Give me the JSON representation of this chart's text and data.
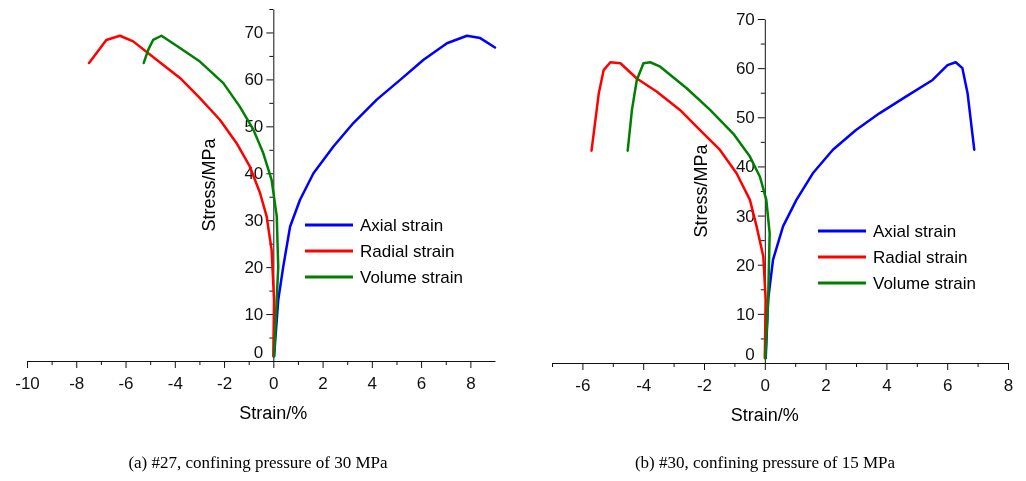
{
  "chart_data": [
    {
      "type": "line",
      "xlabel": "Strain/%",
      "ylabel": "Stress/MPa",
      "annotations": [
        "(a) #27, confining pressure of 30 MPa"
      ],
      "xlim": [
        -10,
        9
      ],
      "ylim": [
        0,
        75
      ],
      "xticks": [
        -10,
        {
          "value": -9,
          "label": null
        },
        -8,
        {
          "value": -7,
          "label": null
        },
        -6,
        {
          "value": -5,
          "label": null
        },
        -4,
        {
          "value": -3,
          "label": null
        },
        -2,
        {
          "value": -1,
          "label": null
        },
        0,
        {
          "value": 1,
          "label": null
        },
        2,
        {
          "value": 3,
          "label": null
        },
        4,
        {
          "value": 5,
          "label": null
        },
        6,
        {
          "value": 7,
          "label": null
        },
        8
      ],
      "yticks": [
        0,
        {
          "value": 5,
          "label": null
        },
        10,
        {
          "value": 15,
          "label": null
        },
        20,
        {
          "value": 25,
          "label": null
        },
        30,
        {
          "value": 35,
          "label": null
        },
        40,
        {
          "value": 45,
          "label": null
        },
        50,
        {
          "value": 55,
          "label": null
        },
        60,
        {
          "value": 65,
          "label": null
        },
        70,
        {
          "value": 75,
          "label": null
        }
      ],
      "grid": false,
      "legend": "right",
      "marker": "none",
      "line_style": "solid",
      "series": [
        {
          "name": "Axial strain",
          "color": "#0000ff",
          "x": [
            0.03,
            0.2,
            0.4,
            0.68,
            1.08,
            1.63,
            2.44,
            3.25,
            4.2,
            5.15,
            6.1,
            7.05,
            7.86,
            8.4,
            9.0
          ],
          "values": [
            1,
            13,
            20,
            28.6,
            34.3,
            40,
            45.7,
            50.7,
            55.7,
            59.9,
            64.2,
            67.7,
            69.3,
            68.8,
            66.8
          ]
        },
        {
          "name": "Radial strain",
          "color": "#ff0000",
          "x": [
            0,
            0.03,
            -0.07,
            -0.27,
            -0.54,
            -0.95,
            -1.49,
            -2.17,
            -2.98,
            -3.79,
            -4.74,
            -5.69,
            -6.23,
            -6.78,
            -7.48
          ],
          "values": [
            1,
            13,
            23.7,
            30.8,
            35.8,
            41.4,
            46.4,
            51.4,
            56,
            60.3,
            64.2,
            68.1,
            69.3,
            68.4,
            63.5
          ]
        },
        {
          "name": "Volume strain",
          "color": "#007f00",
          "x": [
            0.03,
            0.2,
            0.14,
            -0.07,
            -0.41,
            -0.81,
            -1.36,
            -2.03,
            -2.98,
            -3.79,
            -4.54,
            -4.88,
            -5.08,
            -5.26
          ],
          "values": [
            1,
            20,
            30.8,
            38.6,
            44.3,
            49.3,
            54.2,
            59.2,
            63.8,
            66.7,
            69.3,
            68.4,
            66.3,
            63.5
          ]
        }
      ]
    },
    {
      "type": "line",
      "xlabel": "Strain/%",
      "ylabel": "Stress/MPa",
      "annotations": [
        "(b) #30, confining pressure of 15 MPa"
      ],
      "xlim": [
        -7,
        8
      ],
      "ylim": [
        0,
        70
      ],
      "xticks": [
        {
          "value": -7,
          "label": null
        },
        -6,
        {
          "value": -5,
          "label": null
        },
        -4,
        {
          "value": -3,
          "label": null
        },
        -2,
        {
          "value": -1,
          "label": null
        },
        0,
        {
          "value": 1,
          "label": null
        },
        2,
        {
          "value": 3,
          "label": null
        },
        4,
        {
          "value": 5,
          "label": null
        },
        6,
        {
          "value": 7,
          "label": null
        },
        8
      ],
      "yticks": [
        0,
        {
          "value": 5,
          "label": null
        },
        10,
        {
          "value": 15,
          "label": null
        },
        20,
        {
          "value": 25,
          "label": null
        },
        30,
        {
          "value": 35,
          "label": null
        },
        40,
        {
          "value": 45,
          "label": null
        },
        50,
        {
          "value": 55,
          "label": null
        },
        60,
        {
          "value": 65,
          "label": null
        },
        70
      ],
      "grid": false,
      "legend": "right",
      "marker": "none",
      "line_style": "solid",
      "series": [
        {
          "name": "Axial strain",
          "color": "#0000ff",
          "x": [
            0.03,
            0.11,
            0.27,
            0.6,
            1.04,
            1.58,
            2.24,
            3.0,
            3.77,
            4.64,
            5.52,
            6.01,
            6.28,
            6.5,
            6.67,
            6.89
          ],
          "values": [
            1,
            12.9,
            21,
            27.8,
            33.2,
            38.6,
            43.4,
            47.4,
            50.8,
            54.2,
            57.6,
            60.6,
            61.2,
            60,
            54.9,
            43.4
          ]
        },
        {
          "name": "Radial strain",
          "color": "#ff0000",
          "x": [
            0,
            0.03,
            -0.05,
            -0.27,
            -0.49,
            -0.93,
            -1.48,
            -2.13,
            -2.79,
            -3.55,
            -4.21,
            -4.75,
            -5.08,
            -5.3,
            -5.46,
            -5.7
          ],
          "values": [
            1,
            12.9,
            21.7,
            27.8,
            33.2,
            38.6,
            43.4,
            47.4,
            51.5,
            55.2,
            57.9,
            61,
            61.2,
            59.6,
            54.9,
            43.2
          ]
        },
        {
          "name": "Volume strain",
          "color": "#007f00",
          "x": [
            0.02,
            0.11,
            0.16,
            0.05,
            -0.16,
            -0.49,
            -1.04,
            -1.8,
            -2.57,
            -3.44,
            -3.77,
            -3.99,
            -4.21,
            -4.37,
            -4.51
          ],
          "values": [
            1,
            12.9,
            26.4,
            33.2,
            37.9,
            42,
            46.7,
            51.5,
            55.9,
            60.3,
            61.2,
            61,
            57.6,
            51.5,
            43.2
          ]
        }
      ]
    }
  ]
}
